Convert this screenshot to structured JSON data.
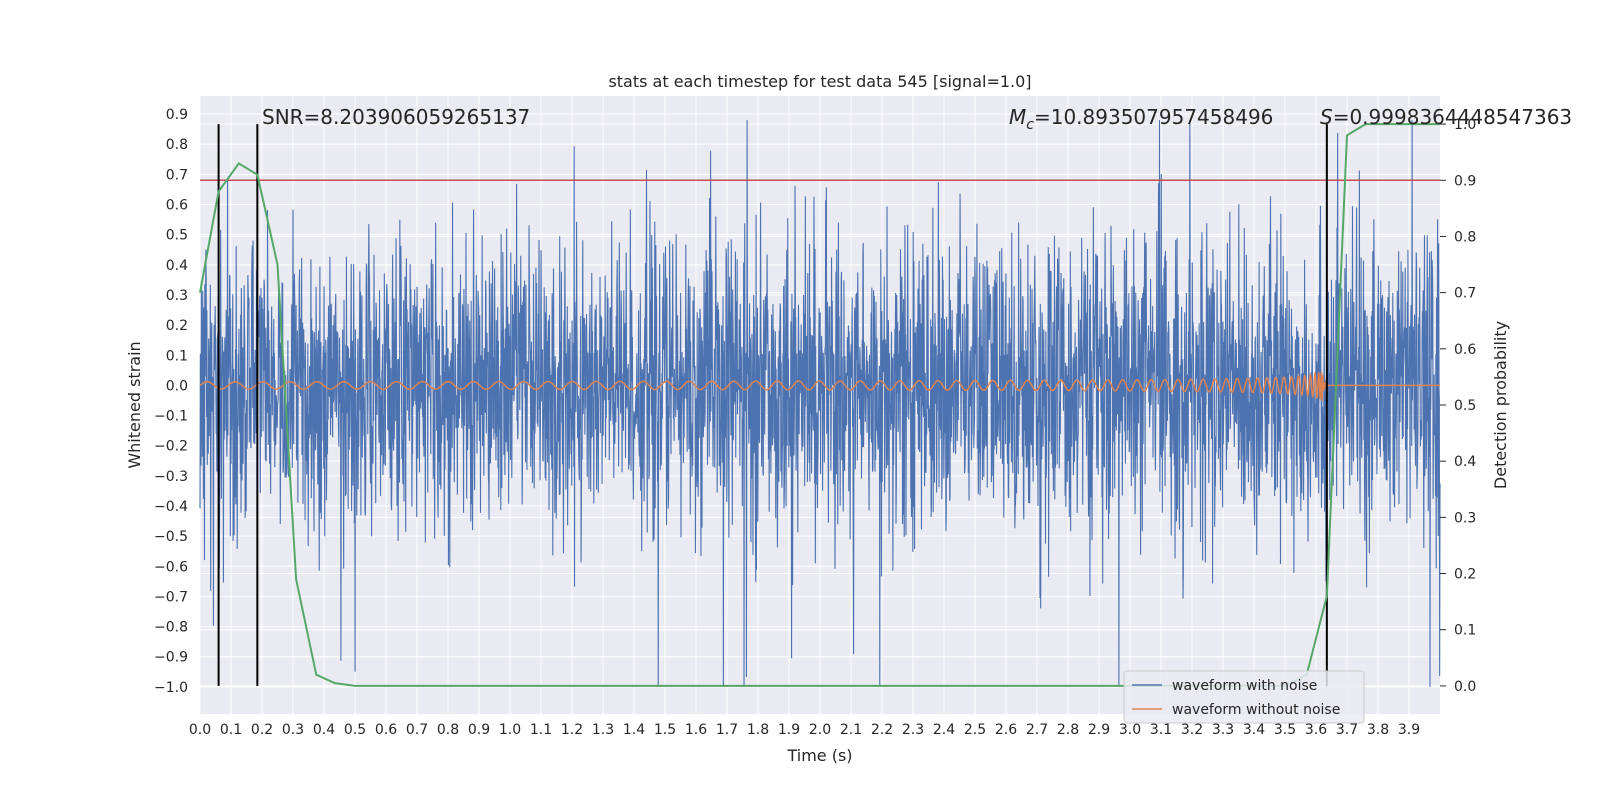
{
  "chart_data": {
    "type": "line",
    "title": "stats at each timestep for test data 545 [signal=1.0]",
    "xlabel": "Time (s)",
    "ylabel": "Whitened strain",
    "ylabel_right": "Detection probability",
    "xlim": [
      0.0,
      4.0
    ],
    "ylim": [
      -1.09,
      0.96
    ],
    "ylim_right": [
      -0.05,
      1.05
    ],
    "x_ticks": [
      "0.0",
      "0.1",
      "0.2",
      "0.3",
      "0.4",
      "0.5",
      "0.6",
      "0.7",
      "0.8",
      "0.9",
      "1.0",
      "1.1",
      "1.2",
      "1.3",
      "1.4",
      "1.5",
      "1.6",
      "1.7",
      "1.8",
      "1.9",
      "2.0",
      "2.1",
      "2.2",
      "2.3",
      "2.4",
      "2.5",
      "2.6",
      "2.7",
      "2.8",
      "2.9",
      "3.0",
      "3.1",
      "3.2",
      "3.3",
      "3.4",
      "3.5",
      "3.6",
      "3.7",
      "3.8",
      "3.9"
    ],
    "y_ticks": [
      "0.9",
      "0.8",
      "0.7",
      "0.6",
      "0.5",
      "0.4",
      "0.3",
      "0.2",
      "0.1",
      "0.0",
      "−0.1",
      "−0.2",
      "−0.3",
      "−0.4",
      "−0.5",
      "−0.6",
      "−0.7",
      "−0.8",
      "−0.9",
      "−1.0"
    ],
    "y_right_ticks": [
      "1.0",
      "0.9",
      "0.8",
      "0.7",
      "0.6",
      "0.5",
      "0.4",
      "0.3",
      "0.2",
      "0.1",
      "0.0"
    ],
    "annotations": {
      "snr": "SNR=8.203906059265137",
      "mc_symbol": "M",
      "mc_sub": "c",
      "mc_value": "=10.893507957458496",
      "s_symbol": "S",
      "s_value": "=0.9998364448547363"
    },
    "threshold_right": 0.9,
    "vertical_lines_x": [
      0.06,
      0.185,
      3.635
    ],
    "merger_time": 3.62,
    "series": [
      {
        "name": "waveform with noise",
        "color": "#4c72b0"
      },
      {
        "name": "waveform without noise",
        "color": "#dd8452"
      },
      {
        "name": "detection probability",
        "color": "#55a868",
        "x": [
          0.0,
          0.06,
          0.125,
          0.185,
          0.25,
          0.31,
          0.375,
          0.435,
          0.5,
          0.6,
          1.0,
          1.5,
          2.0,
          2.5,
          3.0,
          3.3,
          3.5,
          3.57,
          3.635,
          3.7,
          3.76,
          3.83,
          3.9,
          4.0
        ],
        "y": [
          0.7,
          0.88,
          0.93,
          0.91,
          0.75,
          0.19,
          0.02,
          0.005,
          0.0,
          0.0,
          0.0,
          0.0,
          0.0,
          0.0,
          0.0,
          0.0,
          0.0,
          0.02,
          0.16,
          0.98,
          1.0,
          1.0,
          1.0,
          1.0
        ]
      }
    ],
    "legend_position": "lower-right",
    "grid": true,
    "colors": {
      "background": "#eaeaf2",
      "grid": "#ffffff",
      "threshold": "#c44e52",
      "vline": "#000000"
    }
  }
}
